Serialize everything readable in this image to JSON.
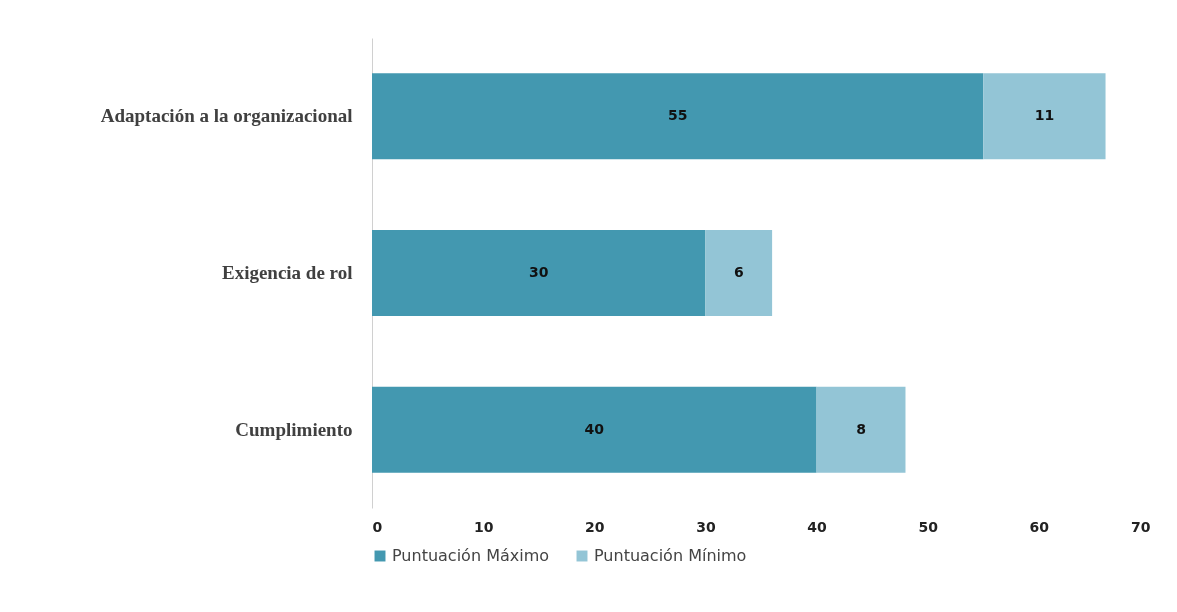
{
  "chart_data": {
    "type": "bar",
    "orientation": "horizontal",
    "stacked": true,
    "categories": [
      "Adaptación a la organizacional",
      "Exigencia de rol",
      "Cumplimiento"
    ],
    "series": [
      {
        "name": "Puntuación Máximo",
        "color": "#4398b0",
        "values": [
          55,
          30,
          40
        ]
      },
      {
        "name": "Puntuación Mínimo",
        "color": "#93c5d6",
        "values": [
          11,
          6,
          8
        ]
      }
    ],
    "xlim": [
      0,
      70
    ],
    "xticks": [
      0,
      10,
      20,
      30,
      40,
      50,
      60,
      70
    ],
    "grid": false,
    "legend": "bottom",
    "data_labels": true
  }
}
